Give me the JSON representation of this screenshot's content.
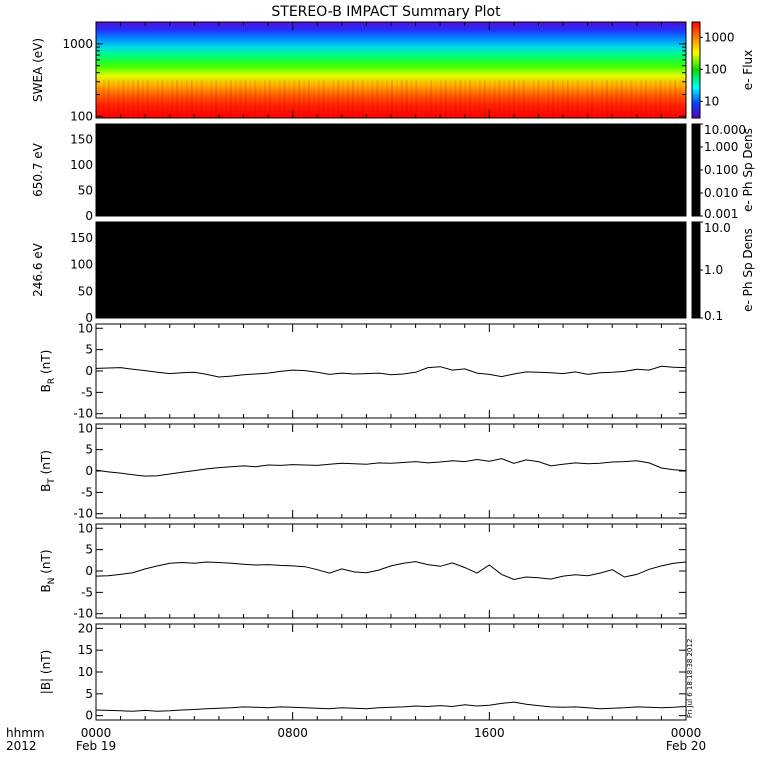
{
  "title": "STEREO-B IMPACT Summary Plot",
  "time_axis": {
    "row1_label": "hhmm",
    "row2_label": "2012",
    "ticks": [
      {
        "hours": 0,
        "label": "0000",
        "date": "Feb 19"
      },
      {
        "hours": 8,
        "label": "0800",
        "date": ""
      },
      {
        "hours": 16,
        "label": "1600",
        "date": ""
      },
      {
        "hours": 24,
        "label": "0000",
        "date": "Feb 20"
      }
    ],
    "range_hours": [
      0,
      24
    ]
  },
  "colors": {
    "black_panel": "#000000",
    "rainbow": [
      "#ff0000",
      "#ff8000",
      "#ffff00",
      "#00e000",
      "#00ffff",
      "#0040ff",
      "#6000c0"
    ]
  },
  "chart_data": [
    {
      "type": "heatmap",
      "name": "swea",
      "ylabel": "SWEA (eV)",
      "yscale": "log",
      "ylim": [
        95,
        2000
      ],
      "yticks": [
        {
          "value": 100,
          "label": "100"
        },
        {
          "value": 1000,
          "label": "1000"
        }
      ],
      "colorbar": {
        "label": "e- Flux",
        "scale": "log",
        "range": [
          3,
          3000
        ],
        "ticks": [
          {
            "value": 10,
            "label": "10"
          },
          {
            "value": 100,
            "label": "100"
          },
          {
            "value": 1000,
            "label": "1000"
          }
        ]
      }
    },
    {
      "type": "heatmap",
      "name": "pad-650",
      "ylabel": "650.7 eV",
      "ylim": [
        0,
        180
      ],
      "yticks": [
        {
          "value": 0,
          "label": "0"
        },
        {
          "value": 50,
          "label": "50"
        },
        {
          "value": 100,
          "label": "100"
        },
        {
          "value": 150,
          "label": "150"
        }
      ],
      "colorbar": {
        "label": "e- Ph Sp Dens",
        "scale": "log",
        "range": [
          0.001,
          10
        ],
        "ticks": [
          {
            "value": 0.001,
            "label": "0.001"
          },
          {
            "value": 0.01,
            "label": "0.010"
          },
          {
            "value": 0.1,
            "label": "0.100"
          },
          {
            "value": 1,
            "label": "1.000"
          },
          {
            "value": 10,
            "label": "10.000"
          }
        ]
      }
    },
    {
      "type": "heatmap",
      "name": "pad-246",
      "ylabel": "246.6 eV",
      "ylim": [
        0,
        180
      ],
      "yticks": [
        {
          "value": 0,
          "label": "0"
        },
        {
          "value": 50,
          "label": "50"
        },
        {
          "value": 100,
          "label": "100"
        },
        {
          "value": 150,
          "label": "150"
        }
      ],
      "colorbar": {
        "label": "e- Ph Sp Dens",
        "scale": "log",
        "range": [
          0.1,
          10
        ],
        "ticks": [
          {
            "value": 0.1,
            "label": "0.1"
          },
          {
            "value": 1,
            "label": "1.0"
          },
          {
            "value": 10,
            "label": "10.0"
          }
        ]
      }
    },
    {
      "type": "line",
      "name": "br",
      "ylabel_main": "B",
      "ylabel_sub": "R",
      "ylabel_unit": "(nT)",
      "ylim": [
        -11,
        11
      ],
      "yticks": [
        {
          "value": -10,
          "label": "-10"
        },
        {
          "value": -5,
          "label": "-5"
        },
        {
          "value": 0,
          "label": "0"
        },
        {
          "value": 5,
          "label": "5"
        },
        {
          "value": 10,
          "label": "10"
        }
      ],
      "x": [
        0,
        0.5,
        1,
        1.5,
        2,
        2.5,
        3,
        3.5,
        4,
        4.5,
        5,
        5.5,
        6,
        6.5,
        7,
        7.5,
        8,
        8.5,
        9,
        9.5,
        10,
        10.5,
        11,
        11.5,
        12,
        12.5,
        13,
        13.5,
        14,
        14.5,
        15,
        15.5,
        16,
        16.5,
        17,
        17.5,
        18,
        18.5,
        19,
        19.5,
        20,
        20.5,
        21,
        21.5,
        22,
        22.5,
        23,
        23.5,
        24
      ],
      "y": [
        0.6,
        0.7,
        0.8,
        0.4,
        0.1,
        -0.3,
        -0.6,
        -0.4,
        -0.3,
        -0.8,
        -1.4,
        -1.2,
        -0.9,
        -0.7,
        -0.5,
        -0.1,
        0.2,
        0.1,
        -0.3,
        -0.8,
        -0.5,
        -0.7,
        -0.6,
        -0.5,
        -0.9,
        -0.7,
        -0.3,
        0.8,
        1.0,
        0.2,
        0.5,
        -0.5,
        -0.8,
        -1.3,
        -0.7,
        -0.2,
        -0.3,
        -0.4,
        -0.6,
        -0.2,
        -0.8,
        -0.4,
        -0.3,
        -0.1,
        0.4,
        0.2,
        1.1,
        0.9,
        0.8
      ]
    },
    {
      "type": "line",
      "name": "bt",
      "ylabel_main": "B",
      "ylabel_sub": "T",
      "ylabel_unit": "(nT)",
      "ylim": [
        -11,
        11
      ],
      "yticks": [
        {
          "value": -10,
          "label": "-10"
        },
        {
          "value": -5,
          "label": "-5"
        },
        {
          "value": 0,
          "label": "0"
        },
        {
          "value": 5,
          "label": "5"
        },
        {
          "value": 10,
          "label": "10"
        }
      ],
      "x": [
        0,
        0.5,
        1,
        1.5,
        2,
        2.5,
        3,
        3.5,
        4,
        4.5,
        5,
        5.5,
        6,
        6.5,
        7,
        7.5,
        8,
        8.5,
        9,
        9.5,
        10,
        10.5,
        11,
        11.5,
        12,
        12.5,
        13,
        13.5,
        14,
        14.5,
        15,
        15.5,
        16,
        16.5,
        17,
        17.5,
        18,
        18.5,
        19,
        19.5,
        20,
        20.5,
        21,
        21.5,
        22,
        22.5,
        23,
        23.5,
        24
      ],
      "y": [
        0.2,
        -0.2,
        -0.5,
        -0.9,
        -1.2,
        -1.1,
        -0.7,
        -0.3,
        0.1,
        0.5,
        0.8,
        1.0,
        1.2,
        1.0,
        1.4,
        1.3,
        1.5,
        1.4,
        1.3,
        1.6,
        1.8,
        1.7,
        1.6,
        1.9,
        1.8,
        2.0,
        2.2,
        1.9,
        2.1,
        2.4,
        2.2,
        2.7,
        2.3,
        2.9,
        1.8,
        2.6,
        2.2,
        1.2,
        1.6,
        1.9,
        1.7,
        1.8,
        2.1,
        2.2,
        2.4,
        1.9,
        0.7,
        0.3,
        0.1
      ]
    },
    {
      "type": "line",
      "name": "bn",
      "ylabel_main": "B",
      "ylabel_sub": "N",
      "ylabel_unit": "(nT)",
      "ylim": [
        -11,
        11
      ],
      "yticks": [
        {
          "value": -10,
          "label": "-10"
        },
        {
          "value": -5,
          "label": "-5"
        },
        {
          "value": 0,
          "label": "0"
        },
        {
          "value": 5,
          "label": "5"
        },
        {
          "value": 10,
          "label": "10"
        }
      ],
      "x": [
        0,
        0.5,
        1,
        1.5,
        2,
        2.5,
        3,
        3.5,
        4,
        4.5,
        5,
        5.5,
        6,
        6.5,
        7,
        7.5,
        8,
        8.5,
        9,
        9.5,
        10,
        10.5,
        11,
        11.5,
        12,
        12.5,
        13,
        13.5,
        14,
        14.5,
        15,
        15.5,
        16,
        16.5,
        17,
        17.5,
        18,
        18.5,
        19,
        19.5,
        20,
        20.5,
        21,
        21.5,
        22,
        22.5,
        23,
        23.5,
        24
      ],
      "y": [
        -1.2,
        -1.1,
        -0.8,
        -0.4,
        0.5,
        1.2,
        1.8,
        2.0,
        1.8,
        2.1,
        2.0,
        1.8,
        1.6,
        1.4,
        1.5,
        1.3,
        1.2,
        1.0,
        0.3,
        -0.5,
        0.5,
        -0.2,
        -0.4,
        0.2,
        1.2,
        1.8,
        2.2,
        1.5,
        1.1,
        1.9,
        0.8,
        -0.5,
        1.4,
        -0.8,
        -2.0,
        -1.4,
        -1.6,
        -1.9,
        -1.2,
        -0.9,
        -1.1,
        -0.5,
        0.3,
        -1.4,
        -0.8,
        0.4,
        1.2,
        1.8,
        2.1
      ]
    },
    {
      "type": "line",
      "name": "bmag",
      "ylabel_main": "|B| (nT)",
      "ylim": [
        -1,
        21
      ],
      "yticks": [
        {
          "value": 0,
          "label": "0"
        },
        {
          "value": 5,
          "label": "5"
        },
        {
          "value": 10,
          "label": "10"
        },
        {
          "value": 15,
          "label": "15"
        },
        {
          "value": 20,
          "label": "20"
        }
      ],
      "x": [
        0,
        0.5,
        1,
        1.5,
        2,
        2.5,
        3,
        3.5,
        4,
        4.5,
        5,
        5.5,
        6,
        6.5,
        7,
        7.5,
        8,
        8.5,
        9,
        9.5,
        10,
        10.5,
        11,
        11.5,
        12,
        12.5,
        13,
        13.5,
        14,
        14.5,
        15,
        15.5,
        16,
        16.5,
        17,
        17.5,
        18,
        18.5,
        19,
        19.5,
        20,
        20.5,
        21,
        21.5,
        22,
        22.5,
        23,
        23.5,
        24
      ],
      "y": [
        1.3,
        1.2,
        1.1,
        1.0,
        1.2,
        1.0,
        1.1,
        1.3,
        1.4,
        1.6,
        1.7,
        1.8,
        2.0,
        1.9,
        1.8,
        2.0,
        1.9,
        1.8,
        1.7,
        1.6,
        1.8,
        1.7,
        1.6,
        1.8,
        1.9,
        2.0,
        2.2,
        2.1,
        2.3,
        2.1,
        2.5,
        2.2,
        2.4,
        2.8,
        3.1,
        2.6,
        2.3,
        2.0,
        1.9,
        2.0,
        1.8,
        1.6,
        1.7,
        1.8,
        2.0,
        1.9,
        1.8,
        1.9,
        2.1
      ]
    }
  ],
  "stamp": "Fri Jul  6 18:18:38 2012"
}
